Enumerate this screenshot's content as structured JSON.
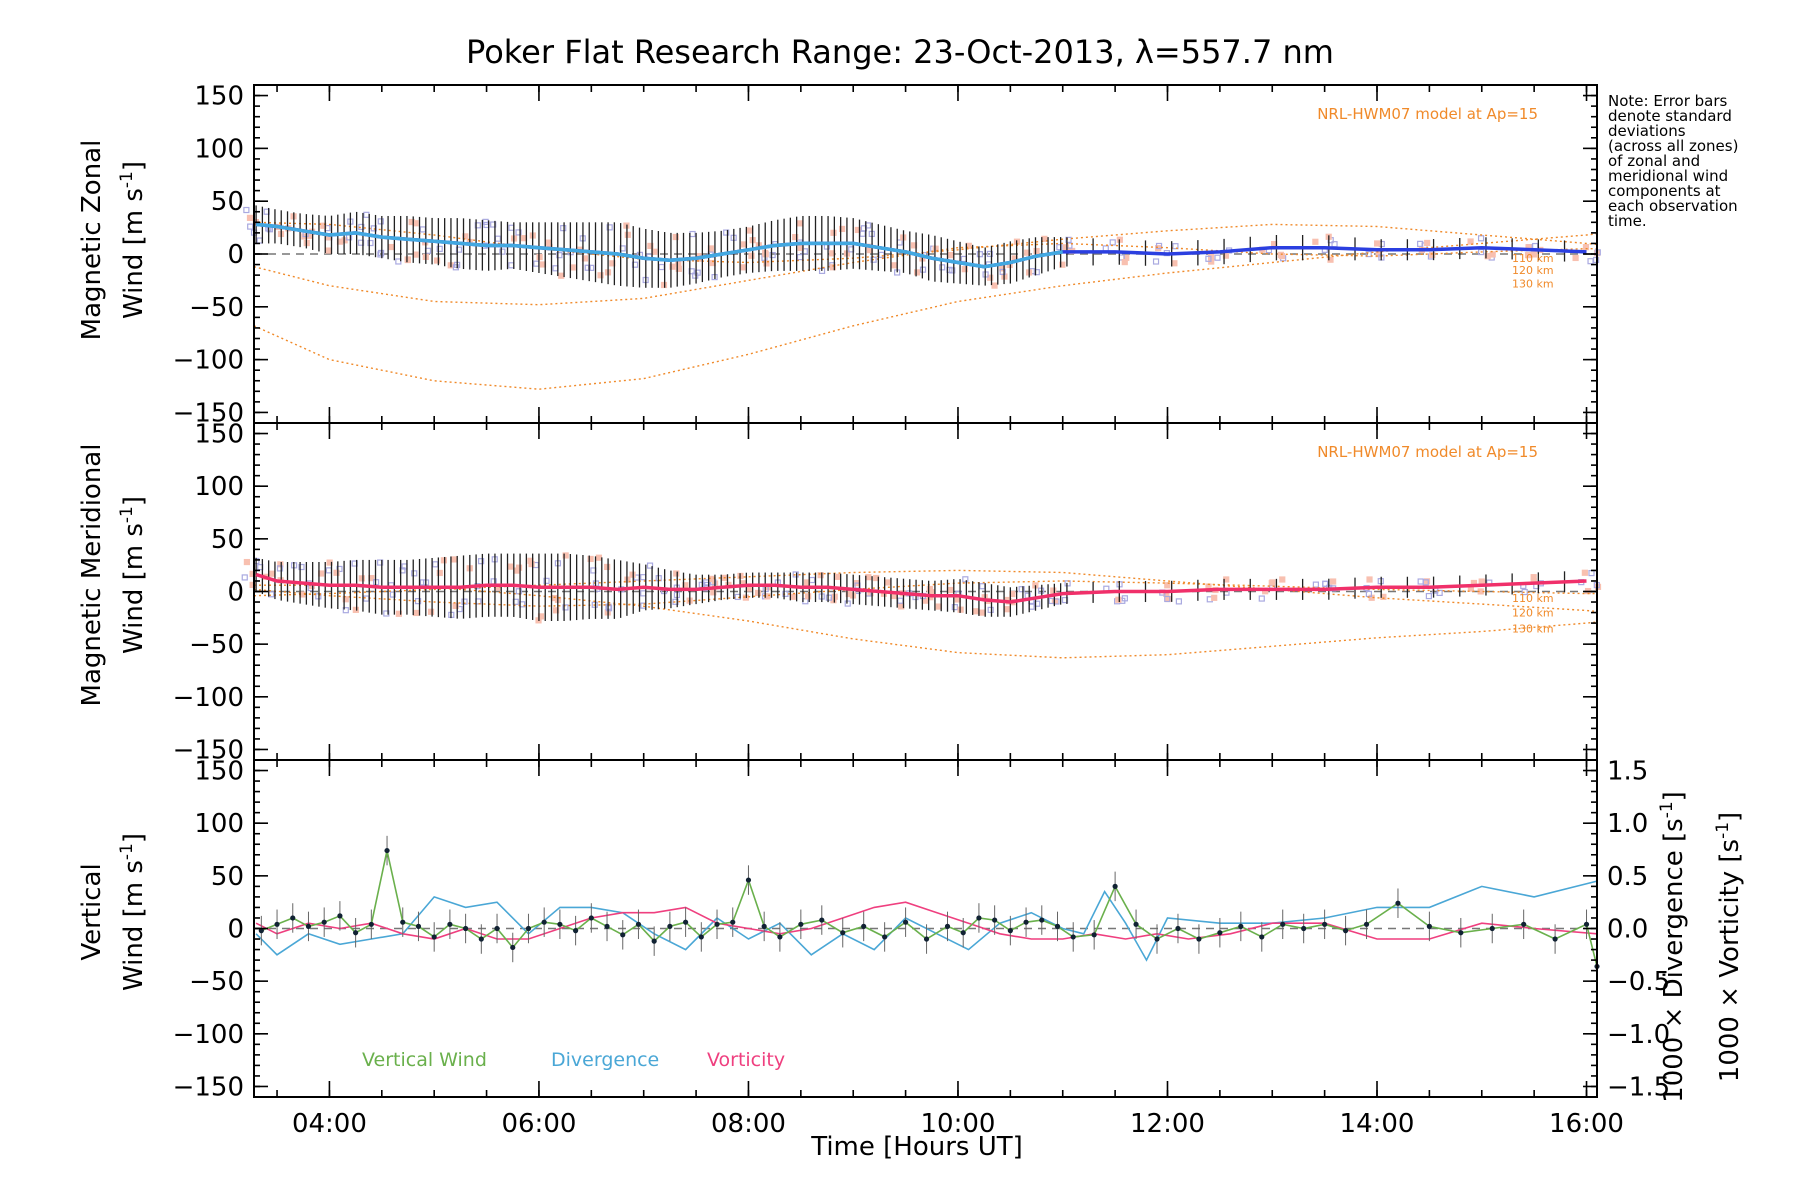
{
  "chart_data": {
    "type": "line",
    "title": "Poker Flat Research Range: 23-Oct-2013, λ=557.7 nm",
    "xlabel": "Time [Hours UT]",
    "xlim": [
      3.28,
      16.1
    ],
    "xticks": [
      4,
      6,
      8,
      10,
      12,
      14,
      16
    ],
    "xtick_labels": [
      "04:00",
      "06:00",
      "08:00",
      "10:00",
      "12:00",
      "14:00",
      "16:00"
    ],
    "note": [
      "Note: Error bars",
      "denote standard",
      "deviations",
      "(across all zones)",
      "of zonal and",
      "meridional wind",
      "components at",
      "each observation",
      "time."
    ],
    "colors": {
      "model": "#f08a2a",
      "zonal": "#2b3fe0",
      "zonal_light": "#42a8e0",
      "meridional": "#f0306a",
      "error": "#222222",
      "scatter": "#a9a9e0",
      "scatter_pink": "#f8c0b0",
      "vertical": "#6ab04c",
      "divergence": "#4aa7d6",
      "vorticity": "#ef3f7f",
      "zero": "#888888"
    },
    "panels": [
      {
        "name": "zonal",
        "ylabel_line1": "Magnetic Zonal",
        "ylabel_line2": "Wind [m s",
        "ylabel_sup": "-1",
        "ylabel_close": "]",
        "ylim": [
          -160,
          160
        ],
        "yticks": [
          -150,
          -100,
          -50,
          0,
          50,
          100,
          150
        ],
        "ytick_labels": [
          "−150",
          "−100",
          "−50",
          "0",
          "50",
          "100",
          "150"
        ],
        "model_label": "NRL-HWM07 model at Ap=15",
        "altitude_labels": [
          "110 km",
          "120 km",
          "130 km"
        ],
        "altitude_label_values": [
          -4,
          -15,
          -28
        ],
        "model_curves": [
          {
            "name": "110 km",
            "x": [
              3.28,
              4,
              5,
              6,
              7,
              8,
              9,
              10,
              11,
              12,
              13,
              14,
              15,
              16,
              16.1
            ],
            "y": [
              -12,
              -30,
              -45,
              -48,
              -42,
              -25,
              -8,
              6,
              10,
              6,
              0,
              -2,
              2,
              5,
              5
            ]
          },
          {
            "name": "120 km",
            "x": [
              3.28,
              4,
              5,
              6,
              7,
              8,
              9,
              10,
              11,
              12,
              13,
              14,
              15,
              16,
              16.1
            ],
            "y": [
              -68,
              -100,
              -120,
              -128,
              -118,
              -95,
              -68,
              -45,
              -30,
              -18,
              -8,
              2,
              10,
              18,
              19
            ]
          },
          {
            "name": "130 km",
            "x": [
              3.28,
              4,
              5,
              6,
              7,
              8,
              9,
              10,
              11,
              12,
              13,
              14,
              15,
              16,
              16.1
            ],
            "y": [
              30,
              28,
              18,
              5,
              -5,
              -8,
              -4,
              4,
              14,
              22,
              28,
              26,
              18,
              10,
              9
            ]
          }
        ],
        "series_x": [
          3.3,
          3.5,
          3.75,
          4,
          4.25,
          4.5,
          4.75,
          5,
          5.25,
          5.5,
          5.75,
          6,
          6.25,
          6.5,
          6.75,
          7,
          7.25,
          7.5,
          7.75,
          8,
          8.25,
          8.5,
          8.75,
          9,
          9.25,
          9.5,
          9.75,
          10,
          10.25,
          10.5,
          10.75,
          11,
          11.5,
          12,
          12.5,
          13,
          13.5,
          14,
          14.5,
          15,
          15.5,
          16
        ],
        "series_y": [
          28,
          26,
          22,
          18,
          20,
          16,
          14,
          12,
          10,
          8,
          8,
          6,
          4,
          2,
          0,
          -4,
          -6,
          -4,
          0,
          4,
          8,
          10,
          10,
          10,
          6,
          2,
          -4,
          -8,
          -12,
          -8,
          -2,
          2,
          2,
          0,
          2,
          6,
          6,
          4,
          4,
          6,
          4,
          2
        ],
        "error": [
          18,
          16,
          16,
          18,
          20,
          20,
          22,
          22,
          24,
          24,
          22,
          24,
          26,
          28,
          30,
          28,
          26,
          24,
          22,
          22,
          24,
          26,
          26,
          24,
          22,
          20,
          22,
          20,
          18,
          20,
          18,
          14,
          12,
          12,
          12,
          12,
          12,
          10,
          10,
          10,
          10,
          10
        ]
      },
      {
        "name": "meridional",
        "ylabel_line1": "Magnetic Meridional",
        "ylabel_line2": "Wind [m s",
        "ylabel_sup": "-1",
        "ylabel_close": "]",
        "ylim": [
          -160,
          160
        ],
        "yticks": [
          -150,
          -100,
          -50,
          0,
          50,
          100,
          150
        ],
        "ytick_labels": [
          "−150",
          "−100",
          "−50",
          "0",
          "50",
          "100",
          "150"
        ],
        "model_label": "NRL-HWM07 model at Ap=15",
        "altitude_labels": [
          "110 km",
          "120 km",
          "130 km"
        ],
        "altitude_label_values": [
          -6,
          -20,
          -35
        ],
        "model_curves": [
          {
            "name": "110 km",
            "x": [
              3.28,
              4,
              5,
              6,
              7,
              8,
              9,
              10,
              11,
              12,
              13,
              14,
              15,
              16,
              16.1
            ],
            "y": [
              2,
              -4,
              -10,
              -14,
              -12,
              -5,
              2,
              8,
              10,
              8,
              5,
              2,
              0,
              -2,
              -2
            ]
          },
          {
            "name": "120 km",
            "x": [
              3.28,
              4,
              5,
              6,
              7,
              8,
              9,
              10,
              11,
              12,
              13,
              14,
              15,
              16,
              16.1
            ],
            "y": [
              6,
              6,
              4,
              -4,
              -14,
              -28,
              -45,
              -58,
              -63,
              -60,
              -52,
              -44,
              -38,
              -30,
              -29
            ]
          },
          {
            "name": "130 km",
            "x": [
              3.28,
              4,
              5,
              6,
              7,
              8,
              9,
              10,
              11,
              12,
              13,
              14,
              15,
              16,
              16.1
            ],
            "y": [
              -4,
              -2,
              2,
              6,
              10,
              14,
              18,
              20,
              18,
              10,
              2,
              -6,
              -12,
              -18,
              -19
            ]
          }
        ],
        "series_x": [
          3.3,
          3.5,
          3.75,
          4,
          4.25,
          4.5,
          4.75,
          5,
          5.25,
          5.5,
          5.75,
          6,
          6.25,
          6.5,
          6.75,
          7,
          7.25,
          7.5,
          7.75,
          8,
          8.25,
          8.5,
          8.75,
          9,
          9.25,
          9.5,
          9.75,
          10,
          10.25,
          10.5,
          10.75,
          11,
          11.5,
          12,
          12.5,
          13,
          13.5,
          14,
          14.5,
          15,
          15.5,
          16
        ],
        "series_y": [
          16,
          10,
          8,
          6,
          6,
          4,
          4,
          4,
          4,
          6,
          6,
          4,
          4,
          4,
          2,
          4,
          2,
          2,
          4,
          6,
          6,
          4,
          4,
          2,
          0,
          -2,
          -4,
          -4,
          -8,
          -10,
          -6,
          -2,
          0,
          0,
          2,
          2,
          2,
          4,
          4,
          6,
          8,
          10
        ],
        "error": [
          16,
          18,
          20,
          22,
          24,
          26,
          26,
          28,
          30,
          30,
          30,
          32,
          32,
          30,
          28,
          22,
          18,
          14,
          12,
          12,
          12,
          14,
          14,
          14,
          14,
          14,
          14,
          16,
          16,
          14,
          12,
          10,
          10,
          10,
          10,
          10,
          10,
          10,
          10,
          10,
          10,
          10
        ]
      },
      {
        "name": "vertical",
        "ylabel_line1": "Vertical",
        "ylabel_line2": "Wind [m s",
        "ylabel_sup": "-1",
        "ylabel_close": "]",
        "ylim": [
          -160,
          160
        ],
        "yticks": [
          -150,
          -100,
          -50,
          0,
          50,
          100,
          150
        ],
        "ytick_labels": [
          "−150",
          "−100",
          "−50",
          "0",
          "50",
          "100",
          "150"
        ],
        "y2lim": [
          -1.6,
          1.6
        ],
        "y2ticks": [
          -1.5,
          -1.0,
          -0.5,
          0.0,
          0.5,
          1.0,
          1.5
        ],
        "y2tick_labels": [
          "−1.5",
          "−1.0",
          "−0.5",
          "0.0",
          "0.5",
          "1.0",
          "1.5"
        ],
        "y2label_divergence": "1000 × Divergence [s",
        "y2label_vorticity": "1000 × Vorticity [s",
        "y2label_sup": "-1",
        "y2label_close": "]",
        "legend": [
          "Vertical Wind",
          "Divergence",
          "Vorticity"
        ],
        "vertical_x": [
          3.35,
          3.5,
          3.65,
          3.8,
          3.95,
          4.1,
          4.25,
          4.4,
          4.55,
          4.7,
          4.85,
          5.0,
          5.15,
          5.3,
          5.45,
          5.6,
          5.75,
          5.9,
          6.05,
          6.2,
          6.35,
          6.5,
          6.65,
          6.8,
          6.95,
          7.1,
          7.25,
          7.4,
          7.55,
          7.7,
          7.85,
          8.0,
          8.15,
          8.3,
          8.5,
          8.7,
          8.9,
          9.1,
          9.3,
          9.5,
          9.7,
          9.9,
          10.05,
          10.2,
          10.35,
          10.5,
          10.65,
          10.8,
          10.95,
          11.1,
          11.3,
          11.5,
          11.7,
          11.9,
          12.1,
          12.3,
          12.5,
          12.7,
          12.9,
          13.1,
          13.3,
          13.5,
          13.7,
          13.9,
          14.2,
          14.5,
          14.8,
          15.1,
          15.4,
          15.7,
          16.0,
          16.1
        ],
        "vertical_y": [
          -2,
          4,
          10,
          2,
          6,
          12,
          -4,
          4,
          74,
          6,
          2,
          -8,
          4,
          0,
          -10,
          0,
          -18,
          0,
          6,
          4,
          -2,
          10,
          2,
          -6,
          4,
          -12,
          2,
          6,
          -8,
          4,
          6,
          46,
          2,
          -8,
          4,
          8,
          -4,
          2,
          -8,
          6,
          -10,
          2,
          -4,
          10,
          8,
          -2,
          6,
          8,
          2,
          -8,
          -6,
          40,
          4,
          -10,
          0,
          -10,
          -4,
          2,
          -8,
          4,
          0,
          4,
          -2,
          4,
          24,
          2,
          -4,
          0,
          4,
          -10,
          4,
          -36
        ],
        "divergence_x": [
          3.3,
          3.5,
          3.8,
          4.1,
          4.4,
          4.7,
          5.0,
          5.3,
          5.6,
          5.9,
          6.2,
          6.5,
          6.8,
          7.1,
          7.4,
          7.7,
          8.0,
          8.3,
          8.6,
          8.9,
          9.2,
          9.5,
          9.8,
          10.1,
          10.4,
          10.7,
          11.0,
          11.2,
          11.4,
          11.6,
          11.8,
          12.0,
          12.5,
          13.0,
          13.5,
          14.0,
          14.5,
          15.0,
          15.5,
          16.1
        ],
        "divergence_y": [
          -0.05,
          -0.25,
          -0.05,
          -0.15,
          -0.1,
          -0.05,
          0.3,
          0.2,
          0.25,
          -0.05,
          0.2,
          0.2,
          0.15,
          -0.05,
          -0.2,
          0.1,
          -0.1,
          0.05,
          -0.25,
          -0.05,
          -0.2,
          0.1,
          -0.05,
          -0.2,
          0.05,
          0.15,
          0.0,
          -0.05,
          0.35,
          0.05,
          -0.3,
          0.1,
          0.05,
          0.05,
          0.1,
          0.2,
          0.2,
          0.4,
          0.3,
          0.45
        ],
        "vorticity_x": [
          3.3,
          3.5,
          3.8,
          4.1,
          4.4,
          4.7,
          5.0,
          5.3,
          5.6,
          5.9,
          6.2,
          6.5,
          6.8,
          7.1,
          7.4,
          7.7,
          8.0,
          8.3,
          8.6,
          8.9,
          9.2,
          9.5,
          9.8,
          10.1,
          10.4,
          10.7,
          11.0,
          11.3,
          11.6,
          11.9,
          12.2,
          12.6,
          13.0,
          13.5,
          14.0,
          14.5,
          15.0,
          15.5,
          16.1
        ],
        "vorticity_y": [
          0.05,
          -0.05,
          0.05,
          0.0,
          0.05,
          -0.05,
          -0.1,
          0.0,
          -0.1,
          -0.1,
          0.0,
          0.1,
          0.15,
          0.15,
          0.2,
          0.05,
          0.0,
          -0.05,
          0.0,
          0.1,
          0.2,
          0.25,
          0.15,
          0.05,
          -0.05,
          -0.1,
          -0.1,
          -0.05,
          -0.1,
          -0.05,
          -0.1,
          -0.05,
          0.05,
          0.05,
          -0.1,
          -0.1,
          0.05,
          0.0,
          -0.05
        ]
      }
    ]
  }
}
